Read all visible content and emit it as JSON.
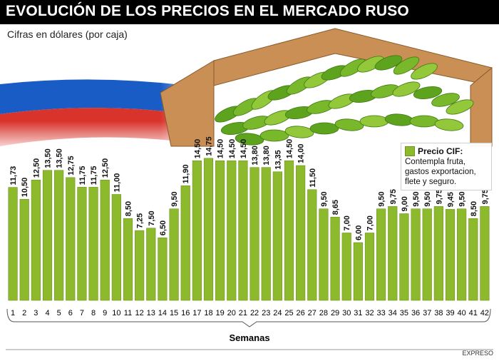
{
  "title": "EVOLUCIÓN DE LOS PRECIOS EN EL MERCADO RUSO",
  "subtitle": "Cifras en dólares (por caja)",
  "legend": {
    "title": "Precio CIF:",
    "text": "Contempla fruta, gastos exportacion, flete y seguro."
  },
  "source": "EXPRESO",
  "colors": {
    "bar": "#8dba2c",
    "bar_edge": "#6d9420",
    "flag_white": "#ffffff",
    "flag_blue": "#1a5cc6",
    "flag_red": "#d9342b",
    "box": "#c98f55",
    "banana": "#78b82a"
  },
  "chart_data": {
    "type": "bar",
    "xlabel": "Semanas",
    "ylabel": "",
    "ylim": [
      0,
      16
    ],
    "grid": false,
    "legend_position": "right",
    "categories": [
      "1",
      "2",
      "3",
      "4",
      "5",
      "6",
      "7",
      "8",
      "9",
      "10",
      "11",
      "12",
      "13",
      "14",
      "15",
      "16",
      "17",
      "18",
      "19",
      "20",
      "21",
      "22",
      "23",
      "24",
      "25",
      "26",
      "27",
      "28",
      "29",
      "30",
      "31",
      "32",
      "33",
      "34",
      "35",
      "36",
      "37",
      "38",
      "39",
      "40",
      "41",
      "42"
    ],
    "values": [
      11.73,
      10.5,
      12.5,
      13.5,
      13.5,
      12.75,
      11.75,
      11.75,
      12.5,
      11.0,
      8.5,
      7.25,
      7.5,
      6.5,
      9.5,
      11.9,
      14.5,
      14.75,
      14.5,
      14.5,
      14.5,
      13.8,
      13.8,
      13.35,
      14.5,
      14.0,
      11.5,
      9.5,
      8.65,
      7.0,
      6.0,
      7.0,
      9.5,
      9.75,
      9.0,
      9.5,
      9.5,
      9.75,
      9.45,
      9.5,
      8.5,
      9.75
    ],
    "labels": [
      "11,73",
      "10,50",
      "12,50",
      "13,50",
      "13,50",
      "12,75",
      "11,75",
      "11,75",
      "12,50",
      "11,00",
      "8,50",
      "7,25",
      "7,50",
      "6,50",
      "9,50",
      "11,90",
      "14,50",
      "14,75",
      "14,50",
      "14,50",
      "14,50",
      "13,80",
      "13,80",
      "13,35",
      "14,50",
      "14,00",
      "11,50",
      "9,50",
      "8,65",
      "7,00",
      "6,00",
      "7,00",
      "9,50",
      "9,75",
      "9,00",
      "9,50",
      "9,50",
      "9,75",
      "9,45",
      "9,50",
      "8,50",
      "9,75"
    ],
    "series": [
      {
        "name": "Precio CIF:"
      }
    ]
  }
}
